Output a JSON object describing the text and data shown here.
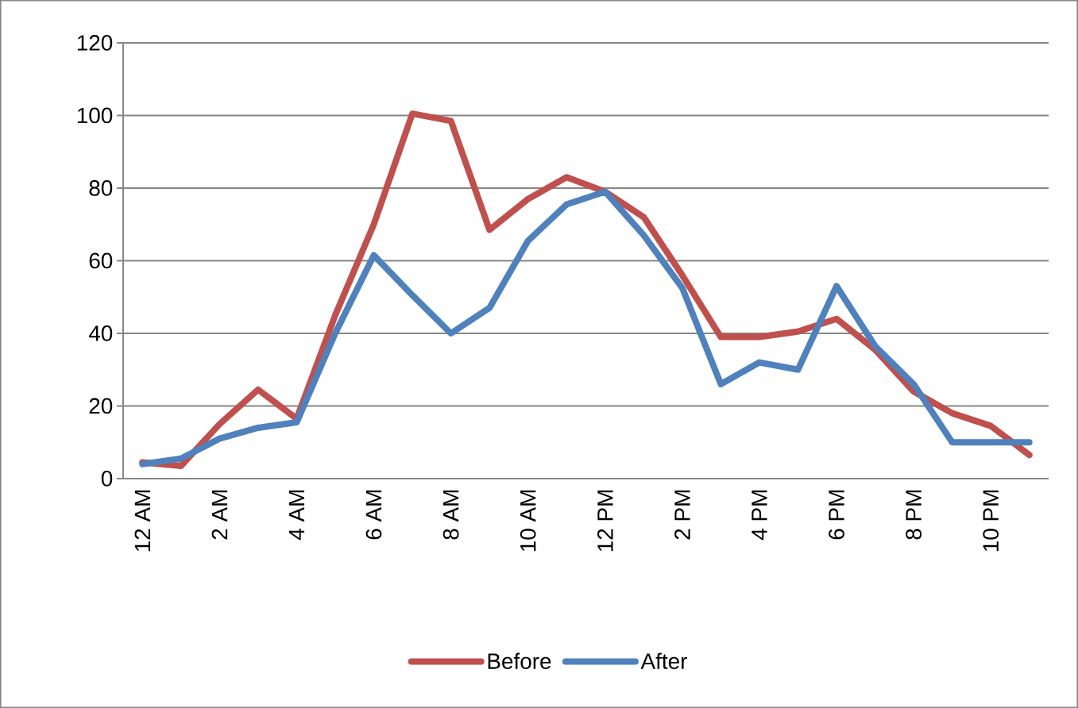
{
  "chart_data": {
    "type": "line",
    "categories": [
      "12 AM",
      null,
      "2 AM",
      null,
      "4 AM",
      null,
      "6 AM",
      null,
      "8 AM",
      null,
      "10 AM",
      null,
      "12 PM",
      null,
      "2 PM",
      null,
      "4 PM",
      null,
      "6 PM",
      null,
      "8 PM",
      null,
      "10 PM",
      null
    ],
    "series": [
      {
        "name": "Before",
        "color": "#c0504d",
        "values": [
          4.5,
          3.5,
          15,
          24.5,
          16.5,
          45,
          70,
          100.5,
          98.5,
          68.5,
          77,
          83,
          79,
          72,
          56,
          39,
          39,
          40.5,
          44,
          35.5,
          24,
          18,
          14.5,
          6.5
        ]
      },
      {
        "name": "After",
        "color": "#4f81bd",
        "values": [
          4,
          5.5,
          11,
          14,
          15.5,
          40,
          61.5,
          50.5,
          40,
          47,
          65.5,
          75.5,
          79,
          67,
          52.5,
          26,
          32,
          30,
          53,
          36.5,
          26,
          10,
          10,
          10
        ]
      }
    ],
    "ylim": [
      0,
      120
    ],
    "yticks": [
      0,
      20,
      40,
      60,
      80,
      100,
      120
    ],
    "grid": "y",
    "legend": "bottom",
    "marker": "none",
    "line_style": "solid"
  }
}
